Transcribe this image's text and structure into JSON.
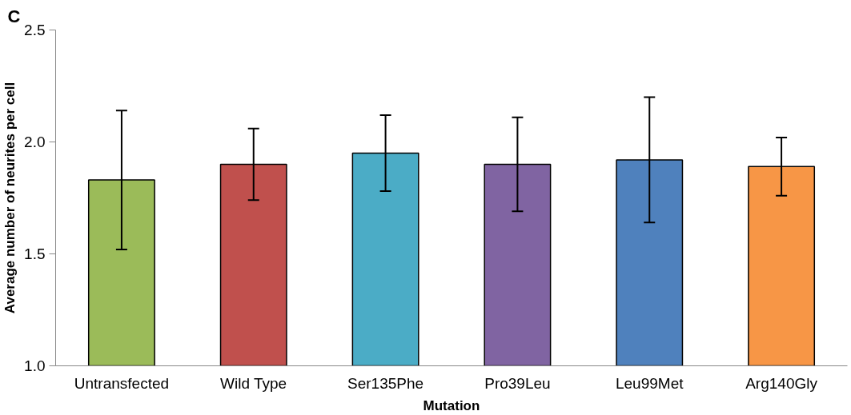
{
  "chart_data": {
    "type": "bar",
    "title": "C",
    "xlabel": "Mutation",
    "ylabel": "Average number of neurites per cell",
    "categories": [
      "Untransfected",
      "Wild Type",
      "Ser135Phe",
      "Pro39Leu",
      "Leu99Met",
      "Arg140Gly"
    ],
    "values": [
      1.83,
      1.9,
      1.95,
      1.9,
      1.92,
      1.89
    ],
    "colors": [
      "#9bbb59",
      "#c0504d",
      "#4bacc6",
      "#8064a2",
      "#4f81bd",
      "#f79646"
    ],
    "errors": [
      0.31,
      0.16,
      0.17,
      0.21,
      0.28,
      0.13
    ],
    "ylim": [
      1.0,
      2.5
    ],
    "yticks": [
      {
        "value": 1.0,
        "label": "1.0"
      },
      {
        "value": 1.5,
        "label": "1.5"
      },
      {
        "value": 2.0,
        "label": "2.0"
      },
      {
        "value": 2.5,
        "label": "2.5"
      }
    ],
    "grid": false
  }
}
